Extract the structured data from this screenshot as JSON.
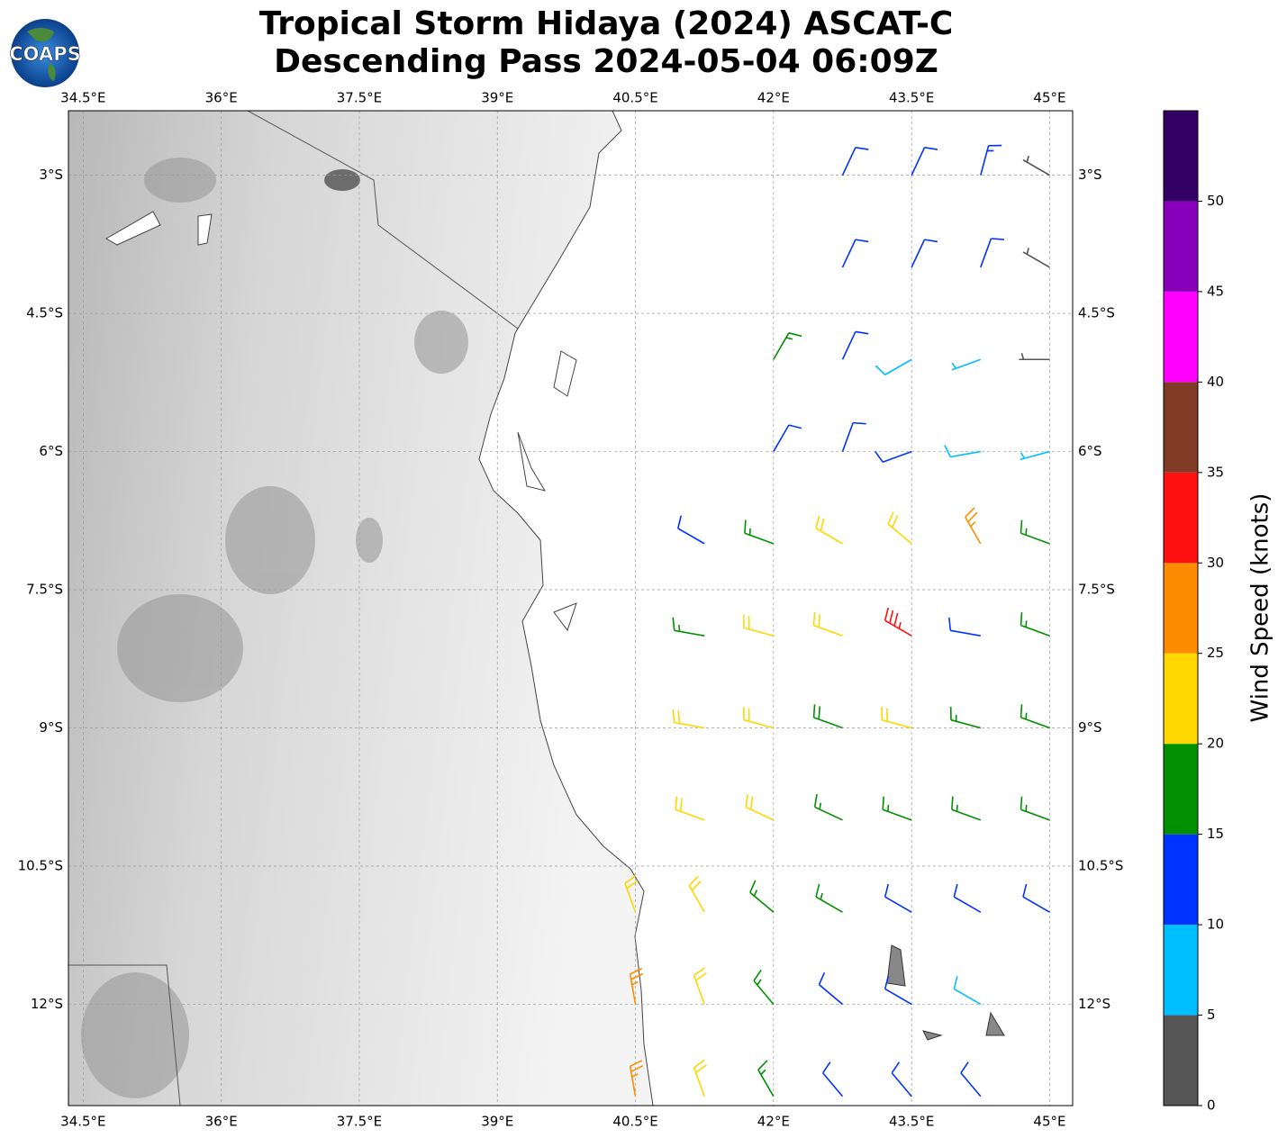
{
  "header": {
    "title_line1": "Tropical Storm Hidaya (2024) ASCAT-C",
    "title_line2": "Descending Pass 2024-05-04 06:09Z",
    "logo": "COAPS"
  },
  "map": {
    "xlim": [
      34.34,
      45.25
    ],
    "ylim": [
      -13.1,
      -2.3
    ],
    "xticks": [
      {
        "value": 34.5,
        "label": "34.5°E"
      },
      {
        "value": 36,
        "label": "36°E"
      },
      {
        "value": 37.5,
        "label": "37.5°E"
      },
      {
        "value": 39,
        "label": "39°E"
      },
      {
        "value": 40.5,
        "label": "40.5°E"
      },
      {
        "value": 42,
        "label": "42°E"
      },
      {
        "value": 43.5,
        "label": "43.5°E"
      },
      {
        "value": 45,
        "label": "45°E"
      }
    ],
    "yticks": [
      {
        "value": -3,
        "label": "3°S"
      },
      {
        "value": -4.5,
        "label": "4.5°S"
      },
      {
        "value": -6,
        "label": "6°S"
      },
      {
        "value": -7.5,
        "label": "7.5°S"
      },
      {
        "value": -9,
        "label": "9°S"
      },
      {
        "value": -10.5,
        "label": "10.5°S"
      },
      {
        "value": -12,
        "label": "12°S"
      }
    ]
  },
  "wind": {
    "lon": [
      42.75,
      43.5,
      44.25,
      45,
      42.75,
      43.5,
      44.25,
      45,
      42,
      42.75,
      43.5,
      44.25,
      45,
      42,
      42.75,
      43.5,
      44.25,
      45,
      41.25,
      42,
      42.75,
      43.5,
      44.25,
      45,
      41.25,
      42,
      42.75,
      43.5,
      44.25,
      45,
      41.25,
      42,
      42.75,
      43.5,
      44.25,
      45,
      41.25,
      42,
      42.75,
      43.5,
      44.25,
      45,
      40.5,
      41.25,
      42,
      42.75,
      43.5,
      44.25,
      45,
      40.5,
      41.25,
      42,
      42.75,
      43.5,
      44.25,
      40.5,
      41.25,
      42,
      42.75,
      43.5,
      44.25
    ],
    "lat": [
      -3,
      -3,
      -3,
      -3,
      -4,
      -4,
      -4,
      -4,
      -5,
      -5,
      -5,
      -5,
      -5,
      -6,
      -6,
      -6,
      -6,
      -6,
      -7,
      -7,
      -7,
      -7,
      -7,
      -7,
      -8,
      -8,
      -8,
      -8,
      -8,
      -8,
      -9,
      -9,
      -9,
      -9,
      -9,
      -9,
      -10,
      -10,
      -10,
      -10,
      -10,
      -10,
      -11,
      -11,
      -11,
      -11,
      -11,
      -11,
      -11,
      -12,
      -12,
      -12,
      -12,
      -12,
      -12,
      -13,
      -13,
      -13,
      -13,
      -13,
      -13
    ],
    "speed": [
      12,
      12,
      14,
      4,
      12,
      12,
      11,
      4,
      17,
      12,
      8,
      7,
      4,
      12,
      12,
      10,
      8,
      6,
      12,
      17,
      22,
      22,
      27,
      17,
      17,
      22,
      22,
      33,
      12,
      17,
      22,
      22,
      18,
      22,
      17,
      17,
      22,
      22,
      17,
      17,
      17,
      17,
      22,
      22,
      17,
      17,
      12,
      12,
      12,
      27,
      22,
      17,
      12,
      12,
      8,
      27,
      22,
      17,
      12,
      12,
      12
    ],
    "direction": [
      25,
      25,
      15,
      300,
      25,
      25,
      20,
      300,
      30,
      25,
      240,
      250,
      270,
      30,
      20,
      250,
      260,
      255,
      300,
      290,
      300,
      310,
      330,
      290,
      280,
      285,
      290,
      300,
      280,
      290,
      280,
      285,
      290,
      285,
      285,
      290,
      290,
      295,
      295,
      290,
      290,
      290,
      340,
      330,
      310,
      300,
      300,
      300,
      300,
      350,
      340,
      320,
      310,
      300,
      300,
      350,
      340,
      330,
      320,
      320,
      320
    ]
  },
  "colorbar": {
    "label": "Wind Speed (knots)",
    "ylim": [
      0,
      55
    ],
    "ticks": [
      0,
      5,
      10,
      15,
      20,
      25,
      30,
      35,
      40,
      45,
      50
    ],
    "bounds": [
      0,
      5,
      10,
      15,
      20,
      25,
      30,
      35,
      40,
      45,
      50,
      55
    ],
    "colors": [
      "#555555",
      "#00bfff",
      "#0033ff",
      "#009000",
      "#ffd700",
      "#ff8c00",
      "#ff1010",
      "#803b26",
      "#ff00ff",
      "#8800bb",
      "#330066"
    ]
  }
}
